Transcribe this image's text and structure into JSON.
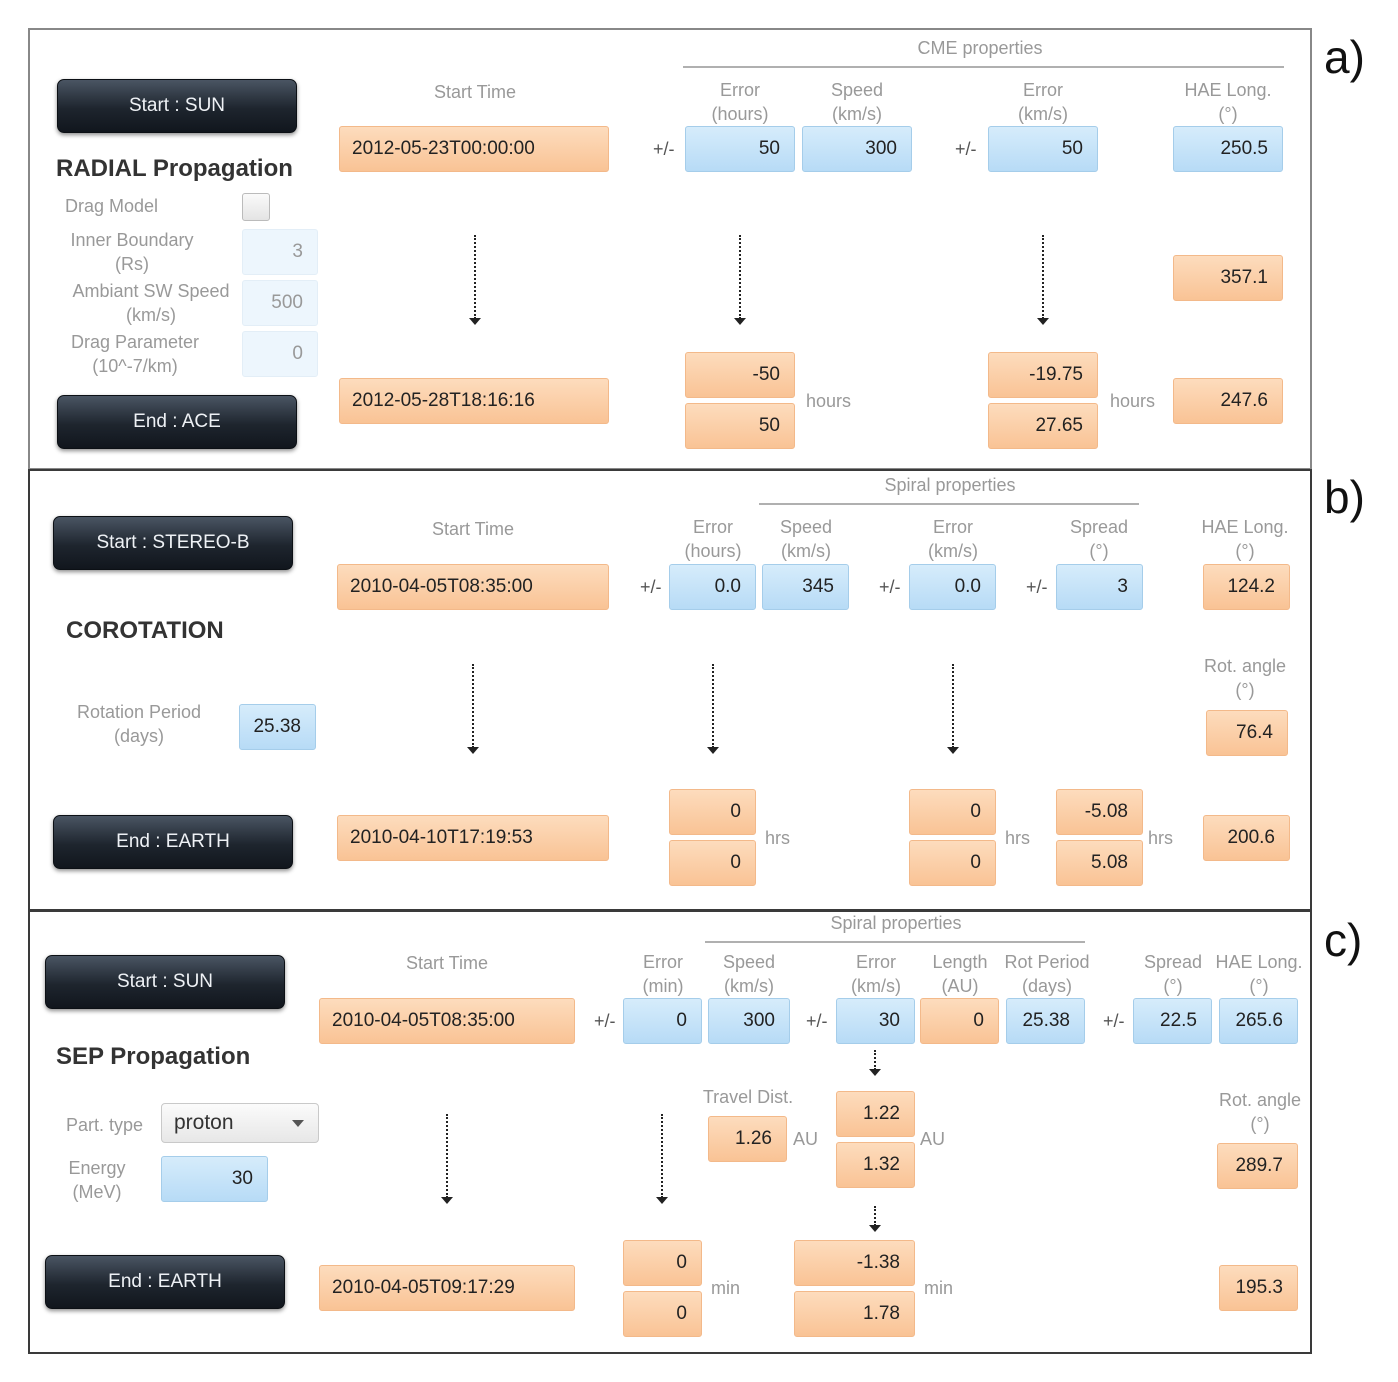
{
  "panel_labels": {
    "a": "a)",
    "b": "b)",
    "c": "c)"
  },
  "common": {
    "pm": "+/-",
    "start_time": "Start Time"
  },
  "panel_a": {
    "start_button": "Start : SUN",
    "end_button": "End : ACE",
    "title": "RADIAL Propagation",
    "drag_model_label": "Drag Model",
    "inner_boundary_label": "Inner Boundary\n(Rs)",
    "inner_boundary_value": "3",
    "sw_speed_label": "Ambiant SW Speed\n(km/s)",
    "sw_speed_value": "500",
    "drag_param_label": "Drag Parameter\n(10^-7/km)",
    "drag_param_value": "0",
    "group_header": "CME properties",
    "hdr_error_hours": "Error\n(hours)",
    "hdr_speed": "Speed\n(km/s)",
    "hdr_error_kms": "Error\n(km/s)",
    "hdr_hae": "HAE Long.\n(°)",
    "start_time_value": "2012-05-23T00:00:00",
    "error_hours_value": "50",
    "speed_value": "300",
    "error_kms_value": "50",
    "hae_value": "250.5",
    "mid_hae_value": "357.1",
    "end_time_value": "2012-05-28T18:16:16",
    "out_err1_low": "-50",
    "out_err1_high": "50",
    "out_unit1": "hours",
    "out_err2_low": "-19.75",
    "out_err2_high": "27.65",
    "out_unit2": "hours",
    "end_hae_value": "247.6"
  },
  "panel_b": {
    "start_button": "Start : STEREO-B",
    "end_button": "End : EARTH",
    "title": "COROTATION",
    "rotation_label": "Rotation Period\n(days)",
    "rotation_value": "25.38",
    "group_header": "Spiral properties",
    "hdr_error_hours": "Error\n(hours)",
    "hdr_speed": "Speed\n(km/s)",
    "hdr_error_kms": "Error\n(km/s)",
    "hdr_spread": "Spread\n(°)",
    "hdr_hae": "HAE Long.\n(°)",
    "start_time_value": "2010-04-05T08:35:00",
    "error_hours_value": "0.0",
    "speed_value": "345",
    "error_kms_value": "0.0",
    "spread_value": "3",
    "hae_value": "124.2",
    "rot_angle_label": "Rot. angle\n(°)",
    "rot_angle_value": "76.4",
    "end_time_value": "2010-04-10T17:19:53",
    "out1_low": "0",
    "out1_high": "0",
    "out1_unit": "hrs",
    "out2_low": "0",
    "out2_high": "0",
    "out2_unit": "hrs",
    "out3_low": "-5.08",
    "out3_high": "5.08",
    "out3_unit": "hrs",
    "end_hae_value": "200.6"
  },
  "panel_c": {
    "start_button": "Start : SUN",
    "end_button": "End : EARTH",
    "title": "SEP Propagation",
    "part_type_label": "Part. type",
    "part_type_value": "proton",
    "energy_label": "Energy\n(MeV)",
    "energy_value": "30",
    "group_header": "Spiral properties",
    "hdr_error_min": "Error\n(min)",
    "hdr_speed": "Speed\n(km/s)",
    "hdr_error_kms": "Error\n(km/s)",
    "hdr_length": "Length\n(AU)",
    "hdr_rot_period": "Rot Period\n(days)",
    "hdr_spread": "Spread\n(°)",
    "hdr_hae": "HAE Long.\n(°)",
    "start_time_value": "2010-04-05T08:35:00",
    "error_min_value": "0",
    "speed_value": "300",
    "error_kms_value": "30",
    "length_value": "0",
    "rot_period_value": "25.38",
    "spread_value": "22.5",
    "hae_value": "265.6",
    "travel_label": "Travel Dist.",
    "travel_value": "1.26",
    "travel_unit": "AU",
    "dist_low": "1.22",
    "dist_high": "1.32",
    "dist_unit": "AU",
    "rot_angle_label": "Rot. angle\n(°)",
    "rot_angle_value": "289.7",
    "end_time_value": "2010-04-05T09:17:29",
    "out1_low": "0",
    "out1_high": "0",
    "out1_unit": "min",
    "out2_low": "-1.38",
    "out2_high": "1.78",
    "out2_unit": "min",
    "end_hae_value": "195.3"
  }
}
